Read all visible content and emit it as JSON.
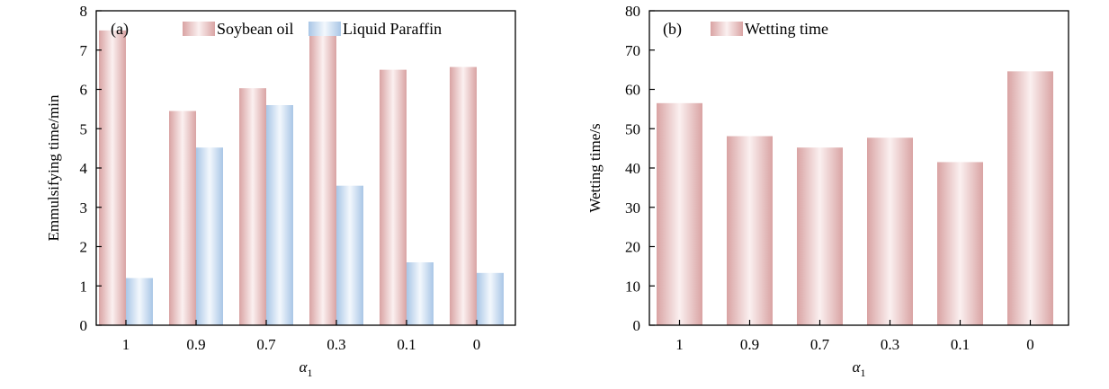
{
  "colors": {
    "pink": "#d9a3a3",
    "pink_light": "#fbf0f0",
    "blue": "#a9c6e6",
    "blue_light": "#f3f8fd"
  },
  "chart_data": [
    {
      "type": "bar",
      "panel_label": "(a)",
      "categories": [
        "1",
        "0.9",
        "0.7",
        "0.3",
        "0.1",
        "0"
      ],
      "series": [
        {
          "name": "Soybean oil",
          "values": [
            7.5,
            5.45,
            6.03,
            7.47,
            6.5,
            6.57
          ],
          "color": "pink"
        },
        {
          "name": "Liquid Paraffin",
          "values": [
            1.2,
            4.52,
            5.6,
            3.55,
            1.6,
            1.33
          ],
          "color": "blue"
        }
      ],
      "xlabel": "α",
      "xlabel_sub": "1",
      "ylabel": "Emmulsifying time/min",
      "ylim": [
        0,
        8
      ],
      "yticks": [
        0,
        1,
        2,
        3,
        4,
        5,
        6,
        7,
        8
      ],
      "grid": false,
      "legend": "top-right"
    },
    {
      "type": "bar",
      "panel_label": "(b)",
      "categories": [
        "1",
        "0.9",
        "0.7",
        "0.3",
        "0.1",
        "0"
      ],
      "series": [
        {
          "name": "Wetting time",
          "values": [
            56.5,
            48.1,
            45.2,
            47.7,
            41.5,
            64.6
          ],
          "color": "pink"
        }
      ],
      "xlabel": "α",
      "xlabel_sub": "1",
      "ylabel": "Wetting time/s",
      "ylim": [
        0,
        80
      ],
      "yticks": [
        0,
        10,
        20,
        30,
        40,
        50,
        60,
        70,
        80
      ],
      "grid": false,
      "legend": "top-left"
    }
  ]
}
